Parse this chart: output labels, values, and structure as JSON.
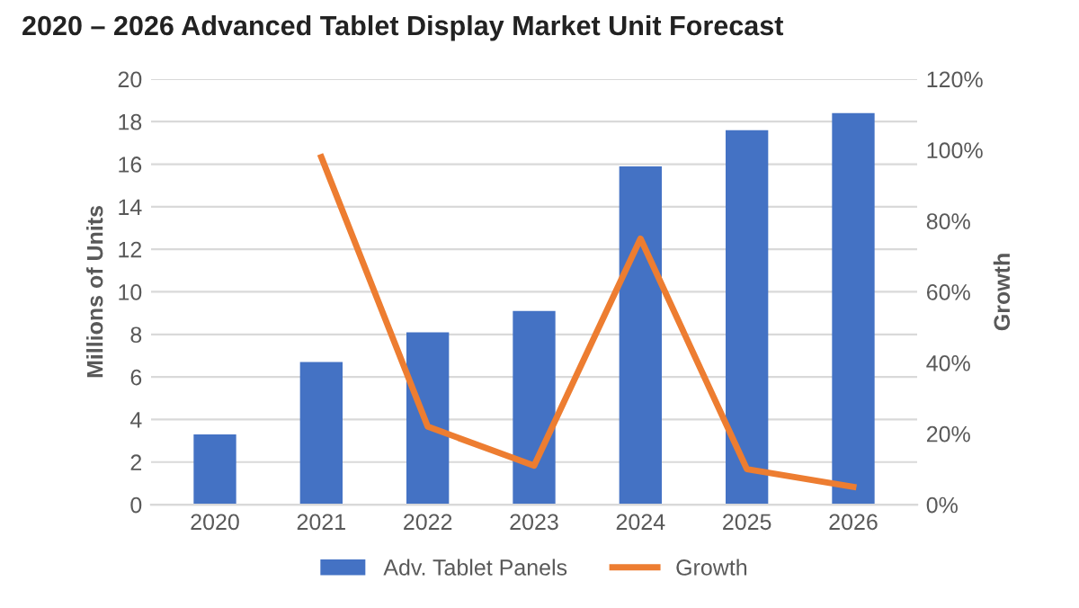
{
  "chart_data": {
    "type": "bar",
    "title": "2020 – 2026 Advanced Tablet Display Market Unit Forecast",
    "categories": [
      "2020",
      "2021",
      "2022",
      "2023",
      "2024",
      "2025",
      "2026"
    ],
    "series": [
      {
        "name": "Adv. Tablet Panels",
        "color": "#4472c4",
        "values": [
          3.3,
          6.7,
          8.1,
          9.1,
          15.9,
          17.6,
          18.4
        ]
      },
      {
        "name": "Growth",
        "type": "line",
        "axis": "y2",
        "color": "#ed7d31",
        "values": [
          null,
          98,
          22,
          11,
          75,
          10,
          5
        ]
      }
    ],
    "ylabel": "Millions of Units",
    "y2label": "Growth",
    "ylim": [
      0,
      20
    ],
    "yticks": [
      0,
      2,
      4,
      6,
      8,
      10,
      12,
      14,
      16,
      18,
      20
    ],
    "y2lim": [
      0,
      120
    ],
    "y2ticks": [
      {
        "value": 0,
        "label": "0%"
      },
      {
        "value": 20,
        "label": "20%"
      },
      {
        "value": 40,
        "label": "40%"
      },
      {
        "value": 60,
        "label": "60%"
      },
      {
        "value": 80,
        "label": "80%"
      },
      {
        "value": 100,
        "label": "100%"
      },
      {
        "value": 120,
        "label": "120%"
      }
    ],
    "grid": "y",
    "legend": "bottom"
  }
}
